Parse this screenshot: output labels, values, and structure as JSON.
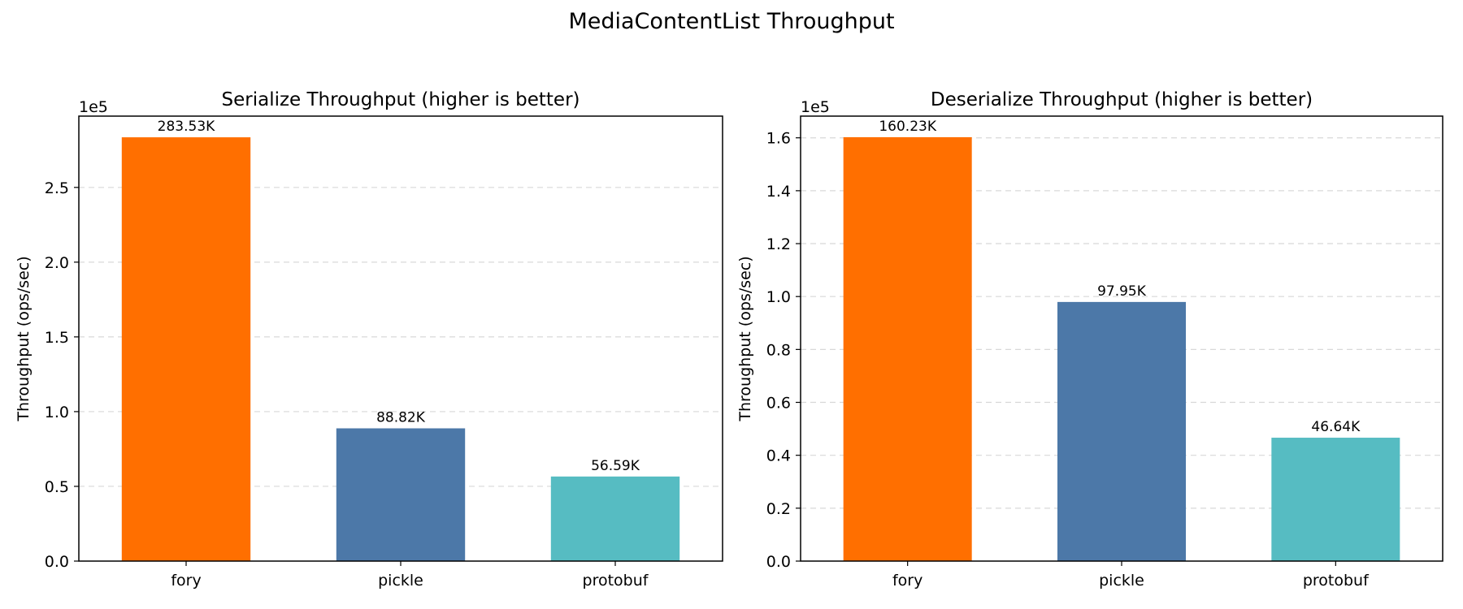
{
  "suptitle": "MediaContentList Throughput",
  "chart_data": [
    {
      "type": "bar",
      "title": "Serialize Throughput (higher is better)",
      "xlabel": "",
      "ylabel": "Throughput (ops/sec)",
      "offset_label": "1e5",
      "categories": [
        "fory",
        "pickle",
        "protobuf"
      ],
      "values": [
        283530,
        88820,
        56590
      ],
      "data_labels": [
        "283.53K",
        "88.82K",
        "56.59K"
      ],
      "colors": [
        "#ff6f00",
        "#4c78a8",
        "#56bcc2"
      ],
      "ylim": [
        0,
        297700
      ],
      "yticks": [
        0,
        50000,
        100000,
        150000,
        200000,
        250000
      ],
      "ytick_labels": [
        "0.0",
        "0.5",
        "1.0",
        "1.5",
        "2.0",
        "2.5"
      ],
      "grid": "y dashed"
    },
    {
      "type": "bar",
      "title": "Deserialize Throughput (higher is better)",
      "xlabel": "",
      "ylabel": "Throughput (ops/sec)",
      "offset_label": "1e5",
      "categories": [
        "fory",
        "pickle",
        "protobuf"
      ],
      "values": [
        160230,
        97950,
        46640
      ],
      "data_labels": [
        "160.23K",
        "97.95K",
        "46.64K"
      ],
      "colors": [
        "#ff6f00",
        "#4c78a8",
        "#56bcc2"
      ],
      "ylim": [
        0,
        168200
      ],
      "yticks": [
        0,
        20000,
        40000,
        60000,
        80000,
        100000,
        120000,
        140000,
        160000
      ],
      "ytick_labels": [
        "0.0",
        "0.2",
        "0.4",
        "0.6",
        "0.8",
        "1.0",
        "1.2",
        "1.4",
        "1.6"
      ],
      "grid": "y dashed"
    }
  ]
}
